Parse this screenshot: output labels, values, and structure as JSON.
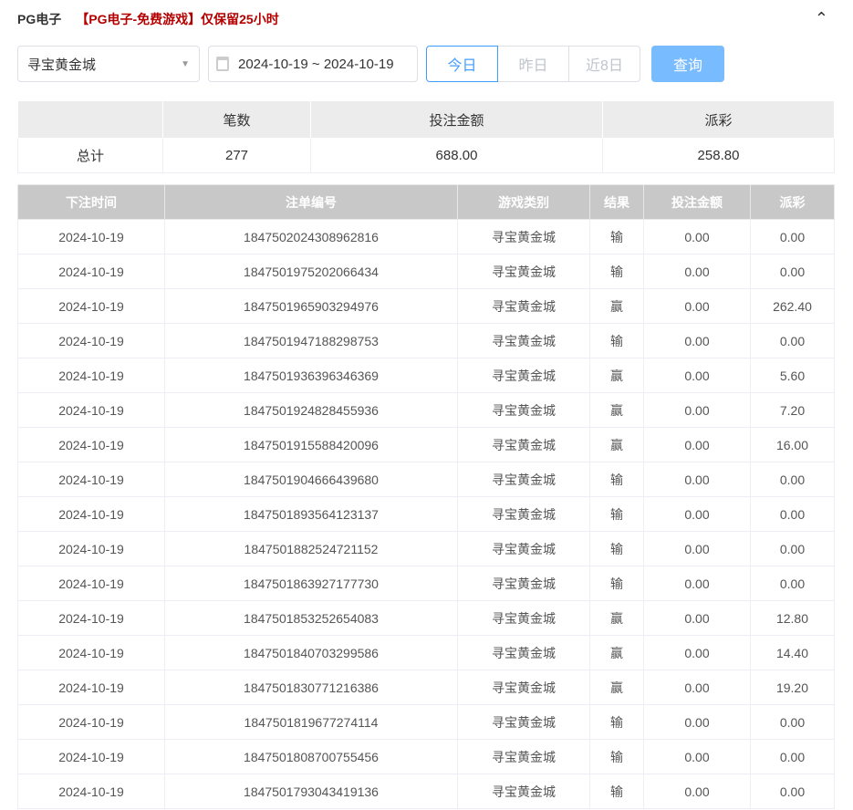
{
  "header": {
    "title": "PG电子",
    "notice": "【PG电子-免费游戏】仅保留25小时",
    "collapse_icon": "chevron-up"
  },
  "filters": {
    "game": "寻宝黄金城",
    "date_range": "2024-10-19 ~ 2024-10-19",
    "quick": [
      "今日",
      "昨日",
      "近8日"
    ],
    "active_quick": "今日",
    "query": "查询"
  },
  "colors": {
    "accent": "#409eff",
    "query_bg": "#79bbff",
    "notice": "#b40000"
  },
  "summary": {
    "headers": [
      "",
      "笔数",
      "投注金额",
      "派彩"
    ],
    "row": [
      "总计",
      "277",
      "688.00",
      "258.80"
    ]
  },
  "details": {
    "headers": [
      "下注时间",
      "注单编号",
      "游戏类别",
      "结果",
      "投注金额",
      "派彩"
    ],
    "rows": [
      [
        "2024-10-19",
        "1847502024308962816",
        "寻宝黄金城",
        "输",
        "0.00",
        "0.00"
      ],
      [
        "2024-10-19",
        "1847501975202066434",
        "寻宝黄金城",
        "输",
        "0.00",
        "0.00"
      ],
      [
        "2024-10-19",
        "1847501965903294976",
        "寻宝黄金城",
        "赢",
        "0.00",
        "262.40"
      ],
      [
        "2024-10-19",
        "1847501947188298753",
        "寻宝黄金城",
        "输",
        "0.00",
        "0.00"
      ],
      [
        "2024-10-19",
        "1847501936396346369",
        "寻宝黄金城",
        "赢",
        "0.00",
        "5.60"
      ],
      [
        "2024-10-19",
        "1847501924828455936",
        "寻宝黄金城",
        "赢",
        "0.00",
        "7.20"
      ],
      [
        "2024-10-19",
        "1847501915588420096",
        "寻宝黄金城",
        "赢",
        "0.00",
        "16.00"
      ],
      [
        "2024-10-19",
        "1847501904666439680",
        "寻宝黄金城",
        "输",
        "0.00",
        "0.00"
      ],
      [
        "2024-10-19",
        "1847501893564123137",
        "寻宝黄金城",
        "输",
        "0.00",
        "0.00"
      ],
      [
        "2024-10-19",
        "1847501882524721152",
        "寻宝黄金城",
        "输",
        "0.00",
        "0.00"
      ],
      [
        "2024-10-19",
        "1847501863927177730",
        "寻宝黄金城",
        "输",
        "0.00",
        "0.00"
      ],
      [
        "2024-10-19",
        "1847501853252654083",
        "寻宝黄金城",
        "赢",
        "0.00",
        "12.80"
      ],
      [
        "2024-10-19",
        "1847501840703299586",
        "寻宝黄金城",
        "赢",
        "0.00",
        "14.40"
      ],
      [
        "2024-10-19",
        "1847501830771216386",
        "寻宝黄金城",
        "赢",
        "0.00",
        "19.20"
      ],
      [
        "2024-10-19",
        "1847501819677274114",
        "寻宝黄金城",
        "输",
        "0.00",
        "0.00"
      ],
      [
        "2024-10-19",
        "1847501808700755456",
        "寻宝黄金城",
        "输",
        "0.00",
        "0.00"
      ],
      [
        "2024-10-19",
        "1847501793043419136",
        "寻宝黄金城",
        "输",
        "0.00",
        "0.00"
      ]
    ]
  }
}
